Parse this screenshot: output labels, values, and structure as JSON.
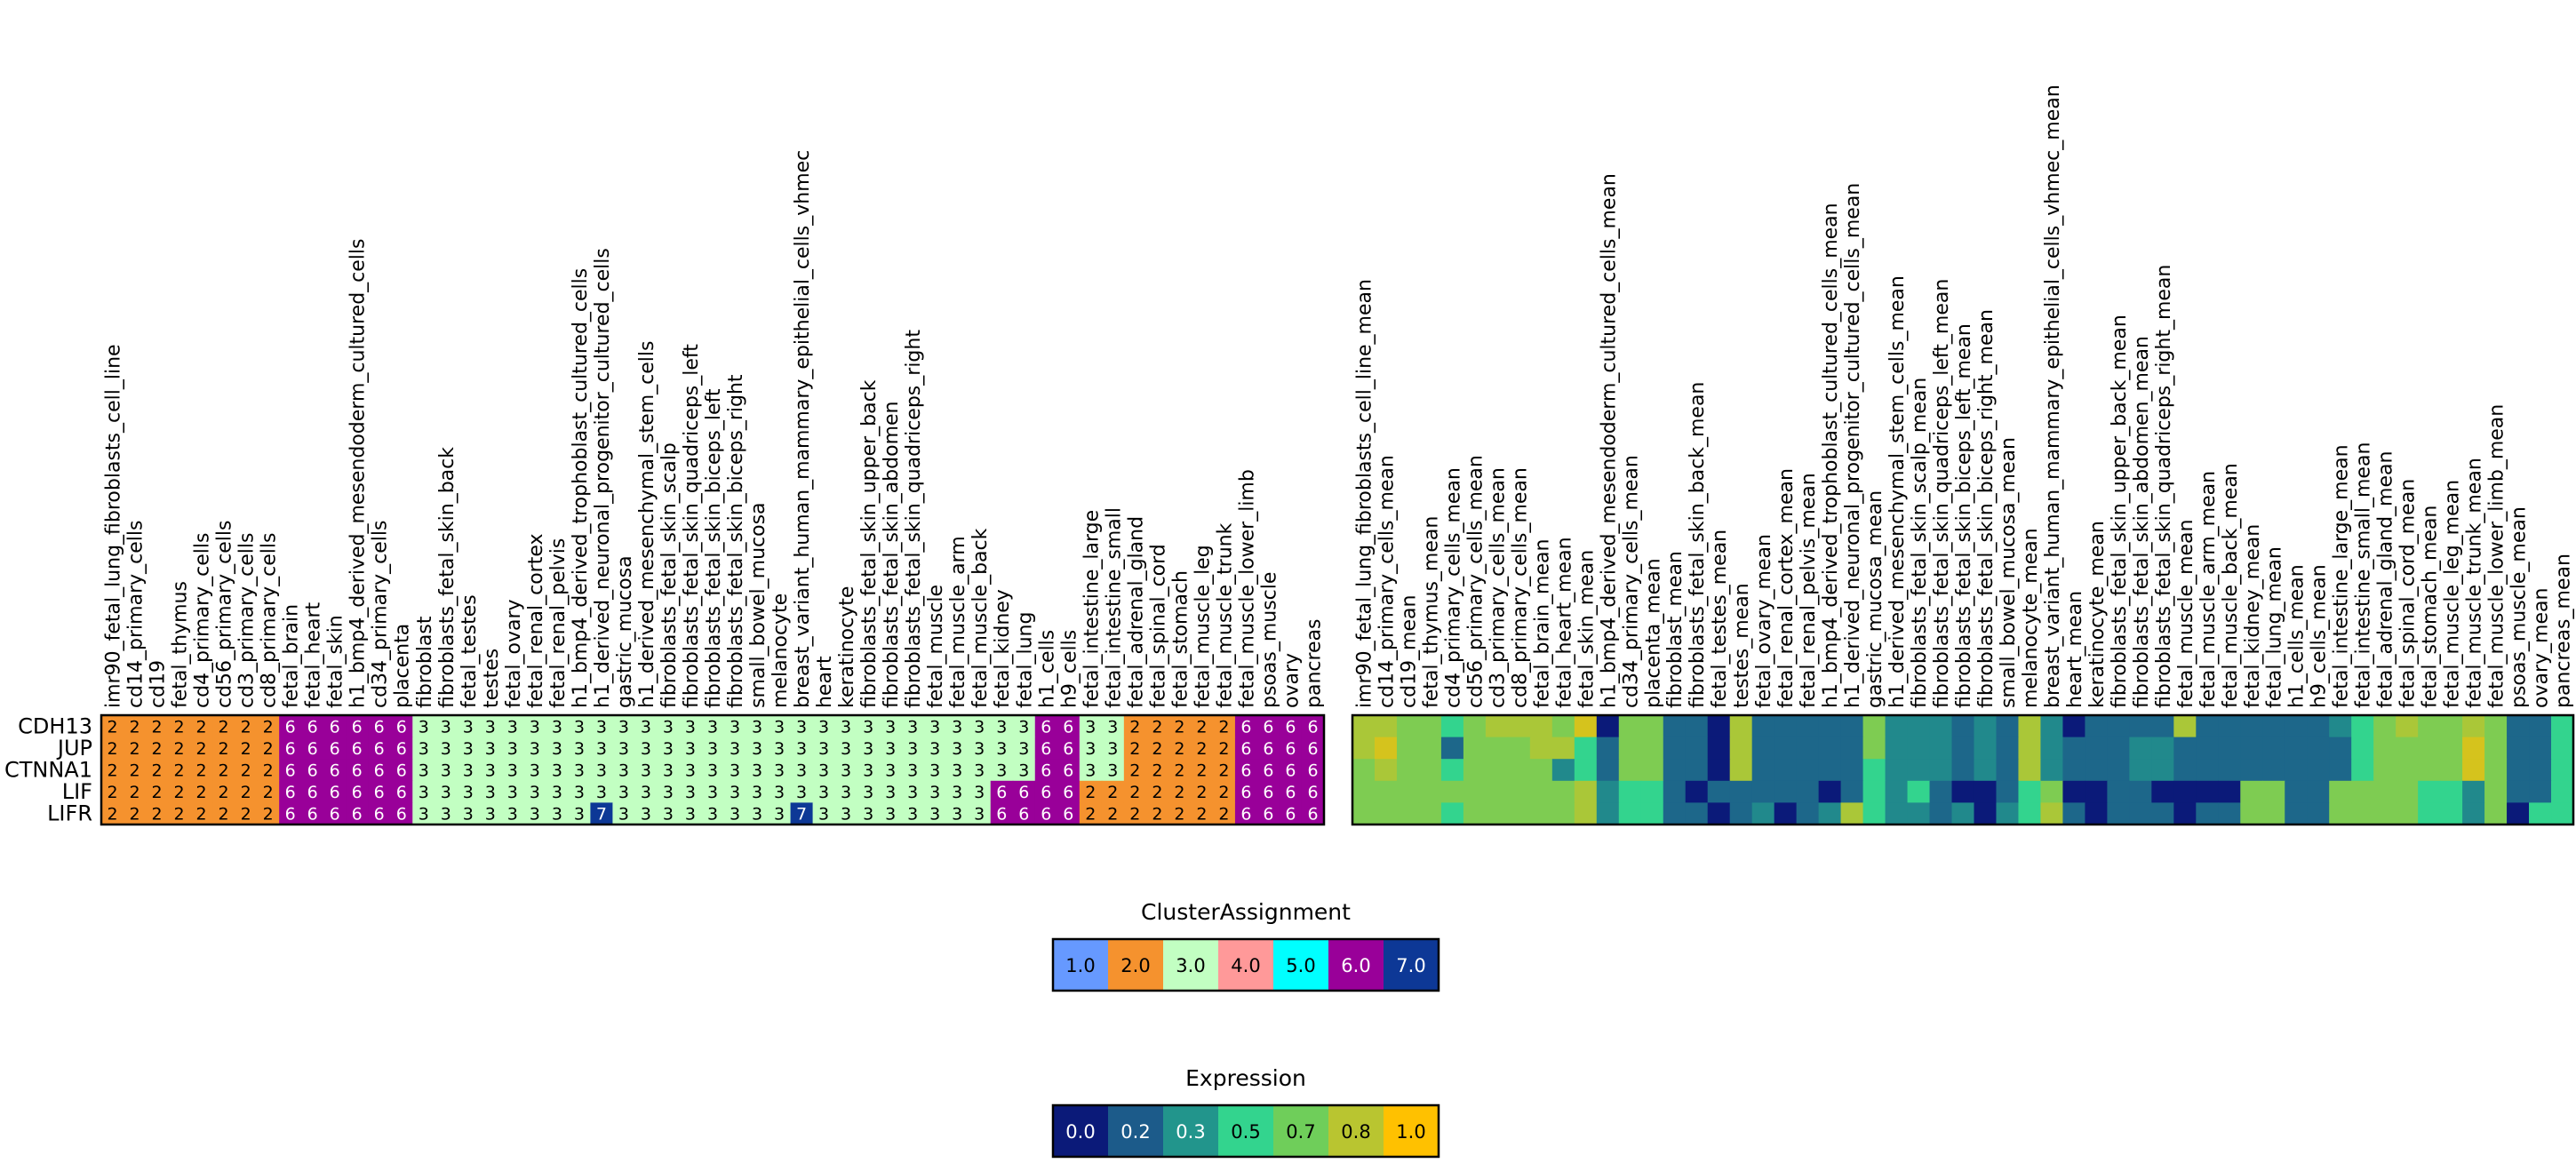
{
  "chart_data": [
    {
      "type": "heatmap",
      "name": "cluster-assignment-heatmap",
      "rows": [
        "CDH13",
        "JUP",
        "CTNNA1",
        "LIF",
        "LIFR"
      ],
      "columns": [
        "imr90_fetal_lung_fibroblasts_cell_line",
        "cd14_primary_cells",
        "cd19",
        "fetal_thymus",
        "cd4_primary_cells",
        "cd56_primary_cells",
        "cd3_primary_cells",
        "cd8_primary_cells",
        "fetal_brain",
        "fetal_heart",
        "fetal_skin",
        "h1_bmp4_derived_mesendoderm_cultured_cells",
        "cd34_primary_cells",
        "placenta",
        "fibroblast",
        "fibroblasts_fetal_skin_back",
        "fetal_testes",
        "testes",
        "fetal_ovary",
        "fetal_renal_cortex",
        "fetal_renal_pelvis",
        "h1_bmp4_derived_trophoblast_cultured_cells",
        "h1_derived_neuronal_progenitor_cultured_cells",
        "gastric_mucosa",
        "h1_derived_mesenchymal_stem_cells",
        "fibroblasts_fetal_skin_scalp",
        "fibroblasts_fetal_skin_quadriceps_left",
        "fibroblasts_fetal_skin_biceps_left",
        "fibroblasts_fetal_skin_biceps_right",
        "small_bowel_mucosa",
        "melanocyte",
        "breast_variant_human_mammary_epithelial_cells_vhmec",
        "heart",
        "keratinocyte",
        "fibroblasts_fetal_skin_upper_back",
        "fibroblasts_fetal_skin_abdomen",
        "fibroblasts_fetal_skin_quadriceps_right",
        "fetal_muscle",
        "fetal_muscle_arm",
        "fetal_muscle_back",
        "fetal_kidney",
        "fetal_lung",
        "h1_cells",
        "h9_cells",
        "fetal_intestine_large",
        "fetal_intestine_small",
        "fetal_adrenal_gland",
        "fetal_spinal_cord",
        "fetal_stomach",
        "fetal_muscle_leg",
        "fetal_muscle_trunk",
        "fetal_muscle_lower_limb",
        "psoas_muscle",
        "ovary",
        "pancreas"
      ],
      "values": [
        [
          2,
          2,
          2,
          2,
          2,
          2,
          2,
          2,
          6,
          6,
          6,
          6,
          6,
          6,
          3,
          3,
          3,
          3,
          3,
          3,
          3,
          3,
          3,
          3,
          3,
          3,
          3,
          3,
          3,
          3,
          3,
          3,
          3,
          3,
          3,
          3,
          3,
          3,
          3,
          3,
          3,
          3,
          6,
          6,
          3,
          3,
          2,
          2,
          2,
          2,
          2,
          6,
          6,
          6,
          6
        ],
        [
          2,
          2,
          2,
          2,
          2,
          2,
          2,
          2,
          6,
          6,
          6,
          6,
          6,
          6,
          3,
          3,
          3,
          3,
          3,
          3,
          3,
          3,
          3,
          3,
          3,
          3,
          3,
          3,
          3,
          3,
          3,
          3,
          3,
          3,
          3,
          3,
          3,
          3,
          3,
          3,
          3,
          3,
          6,
          6,
          3,
          3,
          2,
          2,
          2,
          2,
          2,
          6,
          6,
          6,
          6
        ],
        [
          2,
          2,
          2,
          2,
          2,
          2,
          2,
          2,
          6,
          6,
          6,
          6,
          6,
          6,
          3,
          3,
          3,
          3,
          3,
          3,
          3,
          3,
          3,
          3,
          3,
          3,
          3,
          3,
          3,
          3,
          3,
          3,
          3,
          3,
          3,
          3,
          3,
          3,
          3,
          3,
          3,
          3,
          6,
          6,
          3,
          3,
          2,
          2,
          2,
          2,
          2,
          6,
          6,
          6,
          6
        ],
        [
          2,
          2,
          2,
          2,
          2,
          2,
          2,
          2,
          6,
          6,
          6,
          6,
          6,
          6,
          3,
          3,
          3,
          3,
          3,
          3,
          3,
          3,
          3,
          3,
          3,
          3,
          3,
          3,
          3,
          3,
          3,
          3,
          3,
          3,
          3,
          3,
          3,
          3,
          3,
          3,
          6,
          6,
          6,
          6,
          2,
          2,
          2,
          2,
          2,
          2,
          2,
          6,
          6,
          6,
          6
        ],
        [
          2,
          2,
          2,
          2,
          2,
          2,
          2,
          2,
          6,
          6,
          6,
          6,
          6,
          6,
          3,
          3,
          3,
          3,
          3,
          3,
          3,
          3,
          7,
          3,
          3,
          3,
          3,
          3,
          3,
          3,
          3,
          7,
          3,
          3,
          3,
          3,
          3,
          3,
          3,
          3,
          6,
          6,
          6,
          6,
          2,
          2,
          2,
          2,
          2,
          2,
          2,
          6,
          6,
          6,
          6
        ]
      ],
      "legend": {
        "title": "ClusterAssignment",
        "labels": [
          "1.0",
          "2.0",
          "3.0",
          "4.0",
          "5.0",
          "6.0",
          "7.0"
        ],
        "colors": [
          "#6699ff",
          "#f5922e",
          "#c2ffc2",
          "#ff9999",
          "#00ffff",
          "#990099",
          "#0d3896"
        ],
        "text_colors": [
          "#000000",
          "#000000",
          "#000000",
          "#000000",
          "#000000",
          "#ffffff",
          "#ffffff"
        ]
      }
    },
    {
      "type": "heatmap",
      "name": "expression-heatmap",
      "rows": [
        "CDH13",
        "JUP",
        "CTNNA1",
        "LIF",
        "LIFR"
      ],
      "columns": [
        "imr90_fetal_lung_fibroblasts_cell_line_mean",
        "cd14_primary_cells_mean",
        "cd19_mean",
        "fetal_thymus_mean",
        "cd4_primary_cells_mean",
        "cd56_primary_cells_mean",
        "cd3_primary_cells_mean",
        "cd8_primary_cells_mean",
        "fetal_brain_mean",
        "fetal_heart_mean",
        "fetal_skin_mean",
        "h1_bmp4_derived_mesendoderm_cultured_cells_mean",
        "cd34_primary_cells_mean",
        "placenta_mean",
        "fibroblast_mean",
        "fibroblasts_fetal_skin_back_mean",
        "fetal_testes_mean",
        "testes_mean",
        "fetal_ovary_mean",
        "fetal_renal_cortex_mean",
        "fetal_renal_pelvis_mean",
        "h1_bmp4_derived_trophoblast_cultured_cells_mean",
        "h1_derived_neuronal_progenitor_cultured_cells_mean",
        "gastric_mucosa_mean",
        "h1_derived_mesenchymal_stem_cells_mean",
        "fibroblasts_fetal_skin_scalp_mean",
        "fibroblasts_fetal_skin_quadriceps_left_mean",
        "fibroblasts_fetal_skin_biceps_left_mean",
        "fibroblasts_fetal_skin_biceps_right_mean",
        "small_bowel_mucosa_mean",
        "melanocyte_mean",
        "breast_variant_human_mammary_epithelial_cells_vhmec_mean",
        "heart_mean",
        "keratinocyte_mean",
        "fibroblasts_fetal_skin_upper_back_mean",
        "fibroblasts_fetal_skin_abdomen_mean",
        "fibroblasts_fetal_skin_quadriceps_right_mean",
        "fetal_muscle_mean",
        "fetal_muscle_arm_mean",
        "fetal_muscle_back_mean",
        "fetal_kidney_mean",
        "fetal_lung_mean",
        "h1_cells_mean",
        "h9_cells_mean",
        "fetal_intestine_large_mean",
        "fetal_intestine_small_mean",
        "fetal_adrenal_gland_mean",
        "fetal_spinal_cord_mean",
        "fetal_stomach_mean",
        "fetal_muscle_leg_mean",
        "fetal_muscle_trunk_mean",
        "fetal_muscle_lower_limb_mean",
        "psoas_muscle_mean",
        "ovary_mean",
        "pancreas_mean"
      ],
      "values": [
        [
          0.8,
          0.8,
          0.7,
          0.7,
          0.5,
          0.7,
          0.8,
          0.8,
          0.8,
          0.7,
          0.9,
          0.0,
          0.7,
          0.7,
          0.2,
          0.2,
          0.0,
          0.8,
          0.2,
          0.2,
          0.2,
          0.2,
          0.2,
          0.7,
          0.3,
          0.3,
          0.3,
          0.2,
          0.3,
          0.2,
          0.8,
          0.3,
          0.0,
          0.2,
          0.2,
          0.2,
          0.2,
          0.8,
          0.2,
          0.2,
          0.2,
          0.2,
          0.2,
          0.2,
          0.3,
          0.5,
          0.7,
          0.8,
          0.7,
          0.7,
          0.8,
          0.7,
          0.2,
          0.2,
          0.5
        ],
        [
          0.8,
          0.9,
          0.7,
          0.7,
          0.2,
          0.7,
          0.7,
          0.7,
          0.8,
          0.8,
          0.5,
          0.2,
          0.7,
          0.7,
          0.2,
          0.2,
          0.0,
          0.8,
          0.2,
          0.2,
          0.2,
          0.2,
          0.2,
          0.7,
          0.3,
          0.3,
          0.3,
          0.2,
          0.3,
          0.2,
          0.8,
          0.3,
          0.2,
          0.2,
          0.2,
          0.3,
          0.3,
          0.2,
          0.2,
          0.2,
          0.2,
          0.2,
          0.2,
          0.2,
          0.2,
          0.5,
          0.7,
          0.7,
          0.7,
          0.7,
          0.9,
          0.7,
          0.2,
          0.2,
          0.5
        ],
        [
          0.7,
          0.8,
          0.7,
          0.7,
          0.5,
          0.7,
          0.7,
          0.7,
          0.7,
          0.3,
          0.5,
          0.2,
          0.7,
          0.7,
          0.2,
          0.2,
          0.0,
          0.8,
          0.2,
          0.2,
          0.2,
          0.2,
          0.2,
          0.5,
          0.3,
          0.3,
          0.3,
          0.2,
          0.3,
          0.2,
          0.8,
          0.3,
          0.2,
          0.2,
          0.2,
          0.3,
          0.3,
          0.2,
          0.2,
          0.2,
          0.2,
          0.2,
          0.2,
          0.2,
          0.2,
          0.5,
          0.7,
          0.7,
          0.7,
          0.7,
          0.9,
          0.7,
          0.2,
          0.2,
          0.5
        ],
        [
          0.7,
          0.7,
          0.7,
          0.7,
          0.7,
          0.7,
          0.7,
          0.7,
          0.7,
          0.7,
          0.8,
          0.3,
          0.5,
          0.5,
          0.2,
          0.0,
          0.2,
          0.2,
          0.2,
          0.2,
          0.2,
          0.0,
          0.2,
          0.5,
          0.3,
          0.5,
          0.2,
          0.0,
          0.0,
          0.2,
          0.5,
          0.7,
          0.0,
          0.0,
          0.2,
          0.2,
          0.0,
          0.0,
          0.0,
          0.0,
          0.7,
          0.7,
          0.2,
          0.2,
          0.7,
          0.7,
          0.7,
          0.7,
          0.5,
          0.5,
          0.3,
          0.7,
          0.2,
          0.2,
          0.5
        ],
        [
          0.7,
          0.7,
          0.7,
          0.7,
          0.5,
          0.7,
          0.7,
          0.7,
          0.7,
          0.7,
          0.8,
          0.3,
          0.5,
          0.5,
          0.2,
          0.2,
          0.0,
          0.2,
          0.3,
          0.0,
          0.2,
          0.3,
          0.8,
          0.5,
          0.3,
          0.3,
          0.2,
          0.3,
          0.0,
          0.3,
          0.5,
          0.8,
          0.2,
          0.0,
          0.2,
          0.2,
          0.2,
          0.0,
          0.2,
          0.2,
          0.7,
          0.7,
          0.2,
          0.2,
          0.7,
          0.7,
          0.7,
          0.7,
          0.5,
          0.5,
          0.3,
          0.7,
          0.0,
          0.5,
          0.5
        ]
      ],
      "legend": {
        "title": "Expression",
        "labels": [
          "0.0",
          "0.2",
          "0.3",
          "0.5",
          "0.7",
          "0.8",
          "1.0"
        ],
        "colors": [
          "#0b1a79",
          "#1c5b8a",
          "#22958c",
          "#33d48e",
          "#6fce5a",
          "#b9c530",
          "#ffc100"
        ],
        "text_colors": [
          "#ffffff",
          "#ffffff",
          "#ffffff",
          "#000000",
          "#000000",
          "#000000",
          "#000000"
        ]
      }
    }
  ]
}
